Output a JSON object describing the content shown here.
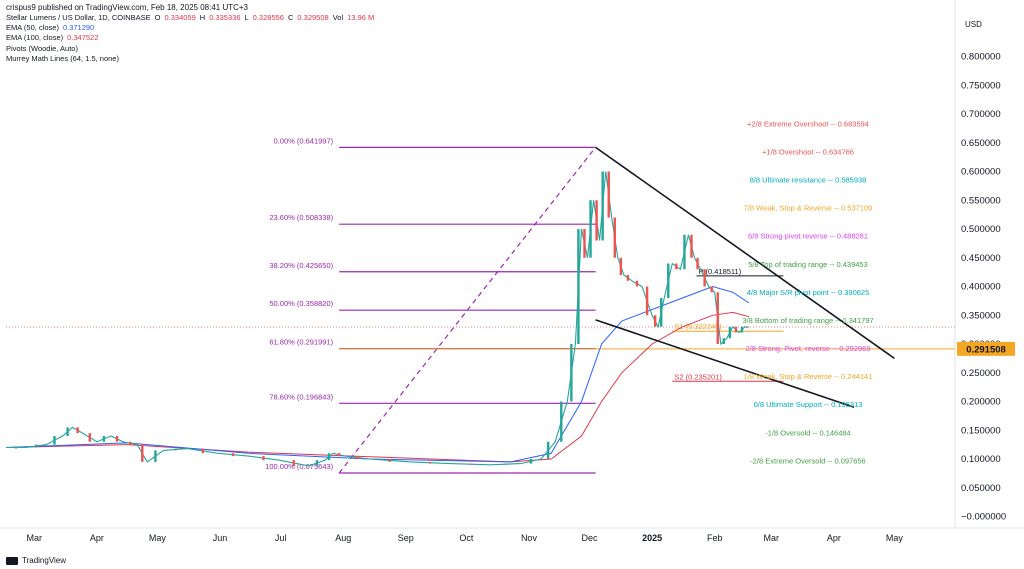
{
  "header": {
    "publisher": "crispus9 published on TradingView.com, Feb 18, 2025 08:41 UTC+3",
    "symbol": "Stellar Lumens / US Dollar, 1D, COINBASE",
    "ohlc": {
      "o_label": "O",
      "o": "0.334059",
      "h_label": "H",
      "h": "0.335336",
      "l_label": "L",
      "l": "0.328556",
      "c_label": "C",
      "c": "0.329508",
      "vol_label": "Vol",
      "vol": "13.96 M"
    },
    "indicators": [
      {
        "label": "EMA (50, close)",
        "value": "0.371290",
        "color": "#2962ff"
      },
      {
        "label": "EMA (100, close)",
        "value": "0.347522",
        "color": "#e2364a"
      },
      {
        "label": "Pivots (Woodie, Auto)",
        "value": "",
        "color": "#131722"
      },
      {
        "label": "Murrey Math Lines (64, 1.5, none)",
        "value": "",
        "color": "#131722"
      }
    ],
    "currency": "USD"
  },
  "brand": "TradingView",
  "chart_data": {
    "type": "line",
    "y_range": [
      -0.02,
      0.86
    ],
    "y_ticks": [
      "0.800000",
      "0.750000",
      "0.700000",
      "0.650000",
      "0.600000",
      "0.550000",
      "0.500000",
      "0.450000",
      "0.400000",
      "0.350000",
      "0.300000",
      "0.250000",
      "0.200000",
      "0.150000",
      "0.100000",
      "0.050000",
      "−0.000000"
    ],
    "y_tick_values": [
      0.8,
      0.75,
      0.7,
      0.65,
      0.6,
      0.55,
      0.5,
      0.45,
      0.4,
      0.35,
      0.3,
      0.25,
      0.2,
      0.15,
      0.1,
      0.05,
      0.0
    ],
    "x_ticks": [
      {
        "label": "Mar",
        "day": 14
      },
      {
        "label": "Apr",
        "day": 45
      },
      {
        "label": "May",
        "day": 75
      },
      {
        "label": "Jun",
        "day": 106
      },
      {
        "label": "Jul",
        "day": 136
      },
      {
        "label": "Aug",
        "day": 167
      },
      {
        "label": "Sep",
        "day": 198
      },
      {
        "label": "Oct",
        "day": 228
      },
      {
        "label": "Nov",
        "day": 259
      },
      {
        "label": "Dec",
        "day": 289
      },
      {
        "label": "2025",
        "day": 320
      },
      {
        "label": "Feb",
        "day": 351
      },
      {
        "label": "Mar",
        "day": 379
      },
      {
        "label": "Apr",
        "day": 410
      },
      {
        "label": "May",
        "day": 440
      }
    ],
    "x_range": [
      0,
      470
    ],
    "current_price": {
      "value": 0.291508,
      "label": "0.291508",
      "color": "#f5a623"
    },
    "last_close": 0.329508,
    "price_path": [
      [
        0,
        0.12
      ],
      [
        10,
        0.12
      ],
      [
        20,
        0.125
      ],
      [
        28,
        0.14
      ],
      [
        33,
        0.155
      ],
      [
        38,
        0.145
      ],
      [
        45,
        0.13
      ],
      [
        52,
        0.14
      ],
      [
        58,
        0.13
      ],
      [
        65,
        0.125
      ],
      [
        70,
        0.095
      ],
      [
        78,
        0.115
      ],
      [
        90,
        0.118
      ],
      [
        105,
        0.11
      ],
      [
        120,
        0.105
      ],
      [
        135,
        0.098
      ],
      [
        150,
        0.088
      ],
      [
        158,
        0.098
      ],
      [
        162,
        0.11
      ],
      [
        168,
        0.105
      ],
      [
        180,
        0.1
      ],
      [
        200,
        0.095
      ],
      [
        220,
        0.092
      ],
      [
        240,
        0.09
      ],
      [
        255,
        0.092
      ],
      [
        265,
        0.1
      ],
      [
        272,
        0.13
      ],
      [
        278,
        0.2
      ],
      [
        282,
        0.3
      ],
      [
        285,
        0.5
      ],
      [
        288,
        0.45
      ],
      [
        291,
        0.55
      ],
      [
        294,
        0.48
      ],
      [
        297,
        0.6
      ],
      [
        300,
        0.52
      ],
      [
        303,
        0.45
      ],
      [
        306,
        0.42
      ],
      [
        310,
        0.41
      ],
      [
        315,
        0.4
      ],
      [
        320,
        0.35
      ],
      [
        323,
        0.33
      ],
      [
        326,
        0.38
      ],
      [
        330,
        0.44
      ],
      [
        334,
        0.43
      ],
      [
        338,
        0.49
      ],
      [
        341,
        0.45
      ],
      [
        344,
        0.43
      ],
      [
        348,
        0.4
      ],
      [
        351,
        0.39
      ],
      [
        354,
        0.3
      ],
      [
        357,
        0.31
      ],
      [
        360,
        0.33
      ],
      [
        363,
        0.32
      ],
      [
        366,
        0.33
      ],
      [
        368,
        0.329508
      ]
    ],
    "ema50": [
      [
        0,
        0.12
      ],
      [
        60,
        0.128
      ],
      [
        120,
        0.11
      ],
      [
        180,
        0.1
      ],
      [
        250,
        0.095
      ],
      [
        270,
        0.11
      ],
      [
        285,
        0.2
      ],
      [
        295,
        0.3
      ],
      [
        305,
        0.34
      ],
      [
        320,
        0.36
      ],
      [
        335,
        0.38
      ],
      [
        350,
        0.4
      ],
      [
        360,
        0.39
      ],
      [
        368,
        0.37129
      ]
    ],
    "ema100": [
      [
        0,
        0.12
      ],
      [
        60,
        0.125
      ],
      [
        120,
        0.112
      ],
      [
        180,
        0.104
      ],
      [
        250,
        0.095
      ],
      [
        270,
        0.1
      ],
      [
        285,
        0.14
      ],
      [
        295,
        0.2
      ],
      [
        305,
        0.25
      ],
      [
        320,
        0.3
      ],
      [
        335,
        0.33
      ],
      [
        350,
        0.35
      ],
      [
        360,
        0.355
      ],
      [
        368,
        0.347522
      ]
    ],
    "fibonacci": [
      {
        "label": "0.00% (0.641997)",
        "value": 0.641997
      },
      {
        "label": "23.60% (0.508338)",
        "value": 0.508338
      },
      {
        "label": "38.20% (0.425650)",
        "value": 0.42565
      },
      {
        "label": "50.00% (0.358820)",
        "value": 0.35882
      },
      {
        "label": "61.80% (0.291991)",
        "value": 0.291991
      },
      {
        "label": "78.60% (0.196843)",
        "value": 0.196843
      },
      {
        "label": "100.00% (0.075643)",
        "value": 0.075643
      }
    ],
    "fib_range_days": [
      165,
      292
    ],
    "fib_color": "#9c27b0",
    "fib_diagonal": [
      [
        165,
        0.075643
      ],
      [
        292,
        0.641997
      ]
    ],
    "wedge": {
      "upper": [
        [
          292,
          0.641997
        ],
        [
          440,
          0.275
        ]
      ],
      "lower": [
        [
          292,
          0.342
        ],
        [
          420,
          0.19
        ]
      ],
      "color": "#131722"
    },
    "pivots": [
      {
        "label": "P (0.418511)",
        "value": 0.418511,
        "days": [
          342,
          385
        ],
        "color": "#131722"
      },
      {
        "label": "S1 (0.322240)",
        "value": 0.32224,
        "days": [
          330,
          385
        ],
        "color": "#f5a623"
      },
      {
        "label": "S2 (0.235201)",
        "value": 0.235201,
        "days": [
          330,
          385
        ],
        "color": "#e2364a"
      }
    ],
    "murrey": [
      {
        "label": "+2/8 Extreme Overshoot -- 0.683594",
        "value": 0.683594,
        "color": "#ef5350"
      },
      {
        "label": "+1/8 Overshoot -- 0.634766",
        "value": 0.634766,
        "color": "#ef5350"
      },
      {
        "label": "8/8 Ultimate resistance -- 0.585938",
        "value": 0.585938,
        "color": "#00acc1"
      },
      {
        "label": "7/8 Weak, Stop & Reverse -- 0.537109",
        "value": 0.537109,
        "color": "#f5a623"
      },
      {
        "label": "6/8 Strong pivot reverse -- 0.488281",
        "value": 0.488281,
        "color": "#e040fb"
      },
      {
        "label": "5/8 Top of trading range -- 0.439453",
        "value": 0.439453,
        "color": "#43a047"
      },
      {
        "label": "4/8 Major S/R pivot point -- 0.390625",
        "value": 0.390625,
        "color": "#00acc1"
      },
      {
        "label": "3/8 Bottom of trading range -- 0.341797",
        "value": 0.341797,
        "color": "#43a047"
      },
      {
        "label": "2/8 Strong, Pivot, reverse -- 0.292969",
        "value": 0.292969,
        "color": "#e040fb"
      },
      {
        "label": "1/8 Weak, Stop & Reverse -- 0.244141",
        "value": 0.244141,
        "color": "#f5a623"
      },
      {
        "label": "0/8 Ultimate Support -- 0.195313",
        "value": 0.195313,
        "color": "#00acc1"
      },
      {
        "label": "-1/8 Oversold -- 0.146484",
        "value": 0.146484,
        "color": "#43a047"
      },
      {
        "label": "-2/8 Extreme Oversold -- 0.097656",
        "value": 0.097656,
        "color": "#43a047"
      }
    ]
  }
}
